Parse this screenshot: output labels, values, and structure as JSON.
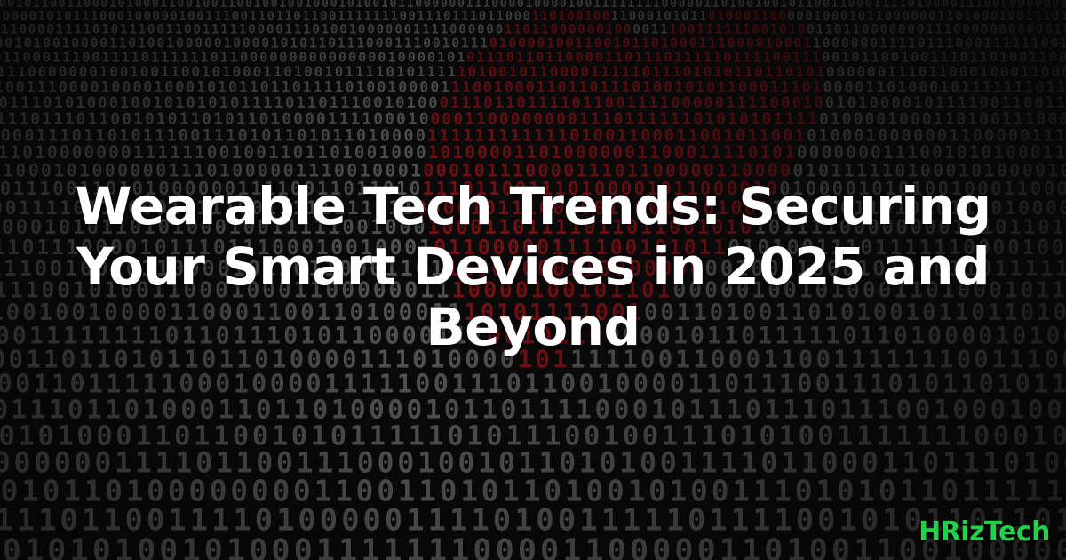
{
  "banner": {
    "headline": "Wearable Tech Trends: Securing Your Smart Devices in 2025 and Beyond",
    "brand": "HRizTech"
  },
  "background": {
    "digits": "binary-digits",
    "digit_color": "#7a7a7a",
    "highlight_color": "#b0161b",
    "highlight_shape": "heart-icon"
  },
  "colors": {
    "headline_text": "#ffffff",
    "brand_text": "#22d14a",
    "background": "#0d0d0d"
  }
}
